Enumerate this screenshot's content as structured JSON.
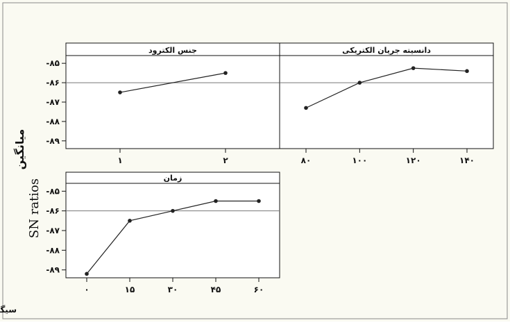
{
  "chart_data": {
    "type": "line",
    "ylabel_fa": "میانگین",
    "ylabel_en": "SN ratios",
    "footer": "سیگنال /نویز : کوچکتر ، بهترین",
    "yticks": [
      -85,
      -86,
      -87,
      -88,
      -89
    ],
    "ytick_labels": [
      "-۸۵",
      "-۸۶",
      "-۸۷",
      "-۸۸",
      "-۸۹"
    ],
    "ylim": [
      -89.4,
      -84.6
    ],
    "reference_line": -86.0,
    "colors": {
      "background": "#fafaf2",
      "panel_bg": "#ffffff",
      "line": "#222222"
    },
    "panels": [
      {
        "title": "جنس الکترود",
        "categories": [
          "۱",
          "۲"
        ],
        "values": [
          -86.5,
          -85.5
        ]
      },
      {
        "title": "دانسیته جریان الکتریکی",
        "categories": [
          "۸۰",
          "۱۰۰",
          "۱۲۰",
          "۱۴۰"
        ],
        "values": [
          -87.3,
          -86.0,
          -85.25,
          -85.4
        ]
      },
      {
        "title": "زمان",
        "categories": [
          "۰",
          "۱۵",
          "۳۰",
          "۴۵",
          "۶۰"
        ],
        "values": [
          -89.2,
          -86.5,
          -86.0,
          -85.5,
          -85.5
        ]
      }
    ]
  }
}
